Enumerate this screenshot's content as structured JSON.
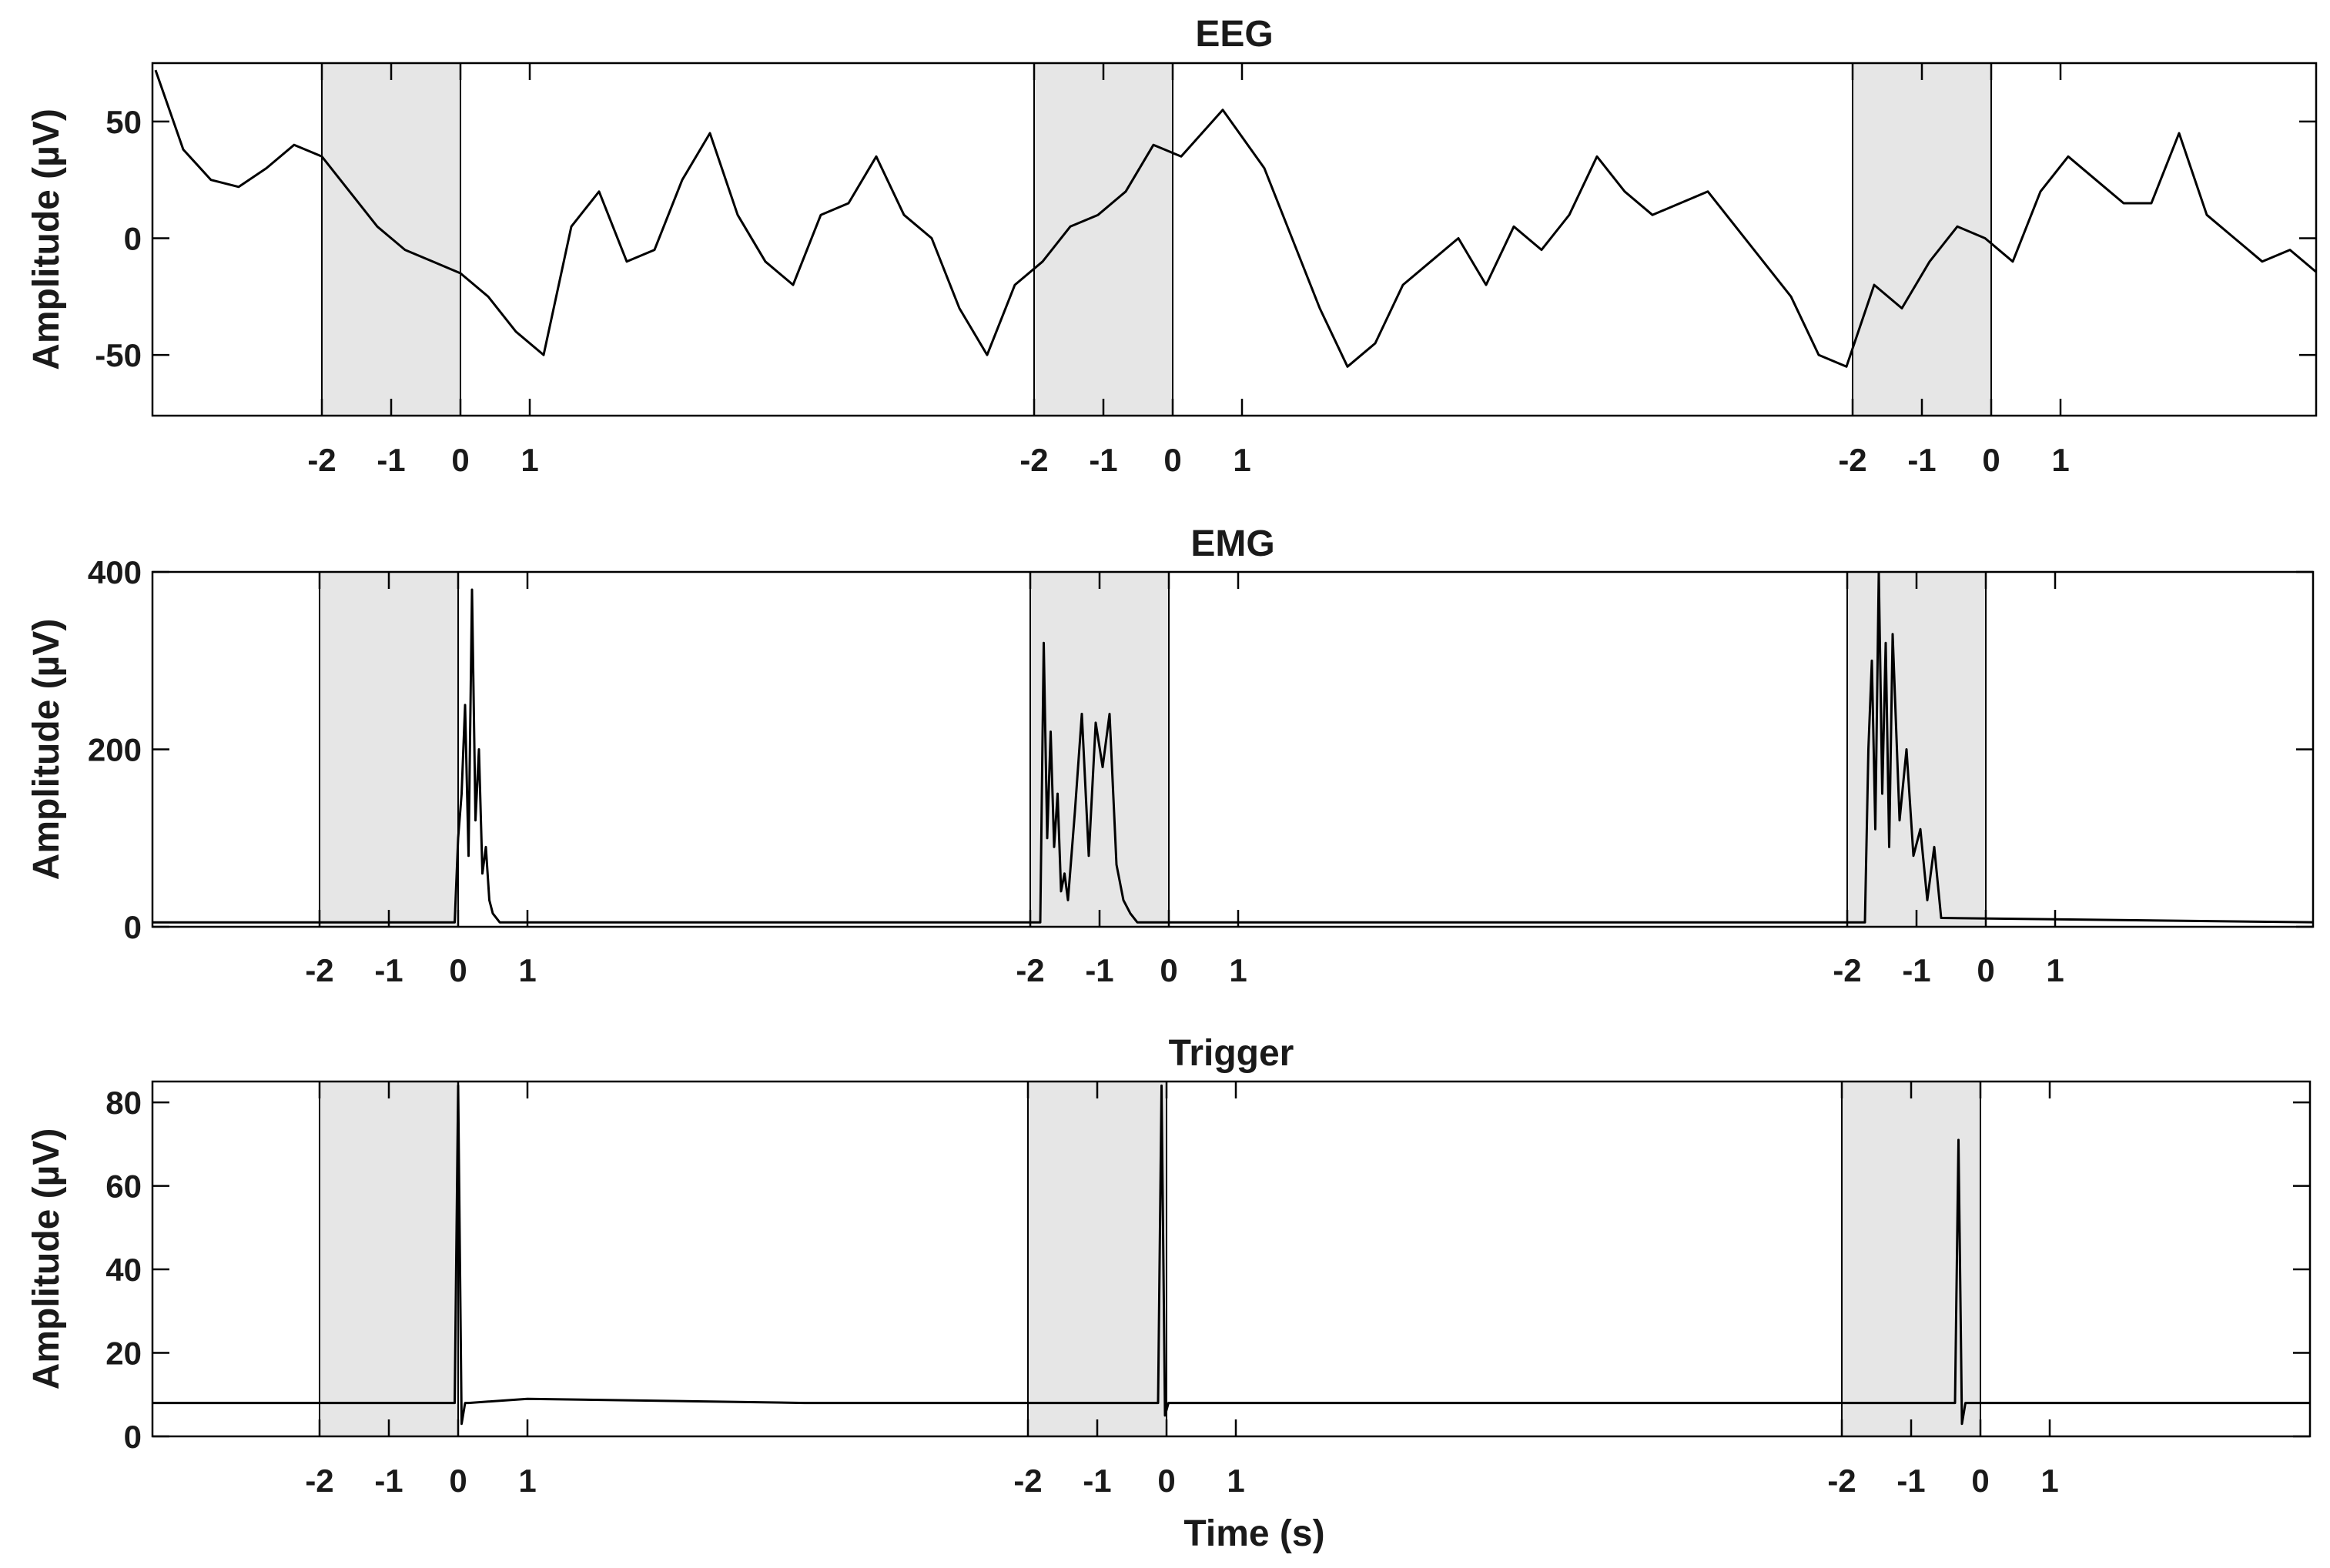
{
  "colors": {
    "trace": "#000000",
    "shade": "#e6e6e6",
    "axes": "#000000",
    "text": "#1a1a1a"
  },
  "chart_data": [
    {
      "type": "line",
      "title": "EEG",
      "ylabel": "Amplitude (µV)",
      "xlabel": "",
      "ylim": [
        -76,
        75
      ],
      "yticks": [
        -50,
        0,
        50
      ],
      "ytick_labels": [
        "-50",
        "0",
        "50"
      ],
      "time_per_tick_s": 1,
      "events": [
        {
          "tick_labels": [
            "-2",
            "-1",
            "0",
            "1"
          ],
          "shaded_window_s": [
            -2,
            0
          ]
        },
        {
          "tick_labels": [
            "-2",
            "-1",
            "0",
            "1"
          ],
          "shaded_window_s": [
            -2,
            0
          ]
        },
        {
          "tick_labels": [
            "-2",
            "-1",
            "0",
            "1"
          ],
          "shaded_window_s": [
            -2,
            0
          ]
        }
      ],
      "series": [
        {
          "x": [
            -4.4,
            -4.0,
            -3.6,
            -3.2,
            -2.8,
            -2.4,
            -2.0,
            -1.6,
            -1.2,
            -0.8,
            -0.4,
            0.0,
            0.4,
            0.8,
            1.2,
            1.6,
            2.0,
            2.4,
            2.8,
            3.2,
            3.6,
            4.0,
            4.4,
            4.8,
            5.2,
            5.6,
            6.0,
            6.4,
            6.8,
            7.2,
            7.6,
            8.0,
            8.4,
            8.8,
            9.2,
            9.6,
            10.0,
            10.4,
            11.0,
            11.6,
            12.0,
            12.4,
            12.8,
            13.2,
            13.6,
            14.0,
            14.4,
            14.8,
            15.2,
            15.6,
            16.0,
            16.4,
            16.8,
            17.2,
            17.6,
            18.0,
            18.4,
            18.8,
            19.2,
            19.6,
            20.0,
            20.4,
            20.8,
            21.2,
            21.6,
            22.0,
            22.4,
            22.8,
            23.2,
            23.6,
            24.0,
            24.4,
            24.8,
            25.2,
            25.6,
            26.0,
            26.4,
            26.8
          ],
          "values": [
            72,
            38,
            25,
            22,
            30,
            40,
            35,
            20,
            5,
            -5,
            -10,
            -15,
            -25,
            -40,
            -50,
            5,
            20,
            -10,
            -5,
            25,
            45,
            10,
            -10,
            -20,
            10,
            15,
            35,
            10,
            0,
            -30,
            -50,
            -20,
            -10,
            5,
            10,
            20,
            40,
            35,
            55,
            30,
            0,
            -30,
            -55,
            -45,
            -20,
            -10,
            0,
            -20,
            5,
            -5,
            10,
            35,
            20,
            10,
            15,
            20,
            5,
            -10,
            -25,
            -50,
            -55,
            -20,
            -30,
            -10,
            5,
            0,
            -10,
            20,
            35,
            25,
            15,
            15,
            45,
            10,
            0,
            -10,
            -5,
            -15
          ]
        }
      ]
    },
    {
      "type": "line",
      "title": "EMG",
      "ylabel": "Amplitude (µV)",
      "xlabel": "",
      "ylim": [
        0,
        400
      ],
      "yticks": [
        0,
        200,
        400
      ],
      "ytick_labels": [
        "0",
        "200",
        "400"
      ],
      "time_per_tick_s": 1,
      "events": [
        {
          "tick_labels": [
            "-2",
            "-1",
            "0",
            "1"
          ],
          "shaded_window_s": [
            -2,
            0
          ]
        },
        {
          "tick_labels": [
            "-2",
            "-1",
            "0",
            "1"
          ],
          "shaded_window_s": [
            -2,
            0
          ]
        },
        {
          "tick_labels": [
            "-2",
            "-1",
            "0",
            "1"
          ],
          "shaded_window_s": [
            -2,
            0
          ]
        }
      ],
      "series": [
        {
          "x": [
            -4.4,
            -0.05,
            0.0,
            0.05,
            0.1,
            0.15,
            0.2,
            0.25,
            0.3,
            0.35,
            0.4,
            0.45,
            0.5,
            0.6,
            0.7,
            8.4,
            8.45,
            8.5,
            8.55,
            8.6,
            8.65,
            8.7,
            8.75,
            8.8,
            8.9,
            9.0,
            9.1,
            9.2,
            9.3,
            9.4,
            9.5,
            9.6,
            9.7,
            9.8,
            9.9,
            20.3,
            20.35,
            20.4,
            20.45,
            20.5,
            20.55,
            20.6,
            20.65,
            20.7,
            20.8,
            20.9,
            21.0,
            21.1,
            21.2,
            21.3,
            21.4,
            26.8
          ],
          "values": [
            5,
            5,
            100,
            150,
            250,
            80,
            380,
            120,
            200,
            60,
            90,
            30,
            15,
            5,
            5,
            5,
            320,
            100,
            220,
            90,
            150,
            40,
            60,
            30,
            130,
            240,
            80,
            230,
            180,
            240,
            70,
            30,
            15,
            5,
            5,
            5,
            200,
            300,
            110,
            400,
            150,
            320,
            90,
            330,
            120,
            200,
            80,
            110,
            30,
            90,
            10,
            5
          ]
        }
      ]
    },
    {
      "type": "line",
      "title": "Trigger",
      "ylabel": "Amplitude (µV)",
      "xlabel": "Time (s)",
      "ylim": [
        0,
        85
      ],
      "yticks": [
        0,
        20,
        40,
        60,
        80
      ],
      "ytick_labels": [
        "0",
        "20",
        "40",
        "60",
        "80"
      ],
      "time_per_tick_s": 1,
      "events": [
        {
          "tick_labels": [
            "-2",
            "-1",
            "0",
            "1"
          ],
          "shaded_window_s": [
            -2,
            0
          ]
        },
        {
          "tick_labels": [
            "-2",
            "-1",
            "0",
            "1"
          ],
          "shaded_window_s": [
            -2,
            0
          ]
        },
        {
          "tick_labels": [
            "-2",
            "-1",
            "0",
            "1"
          ],
          "shaded_window_s": [
            -2,
            0
          ]
        }
      ],
      "series": [
        {
          "x": [
            -4.4,
            -0.05,
            0.0,
            0.05,
            0.1,
            0.15,
            1.0,
            5.0,
            10.1,
            10.15,
            10.2,
            10.25,
            10.3,
            15.0,
            21.6,
            21.65,
            21.7,
            21.75,
            21.8,
            26.8
          ],
          "values": [
            8,
            8,
            84,
            3,
            8,
            8,
            9,
            8,
            8,
            84,
            5,
            8,
            8,
            8,
            8,
            71,
            3,
            8,
            8,
            8
          ]
        }
      ]
    }
  ]
}
